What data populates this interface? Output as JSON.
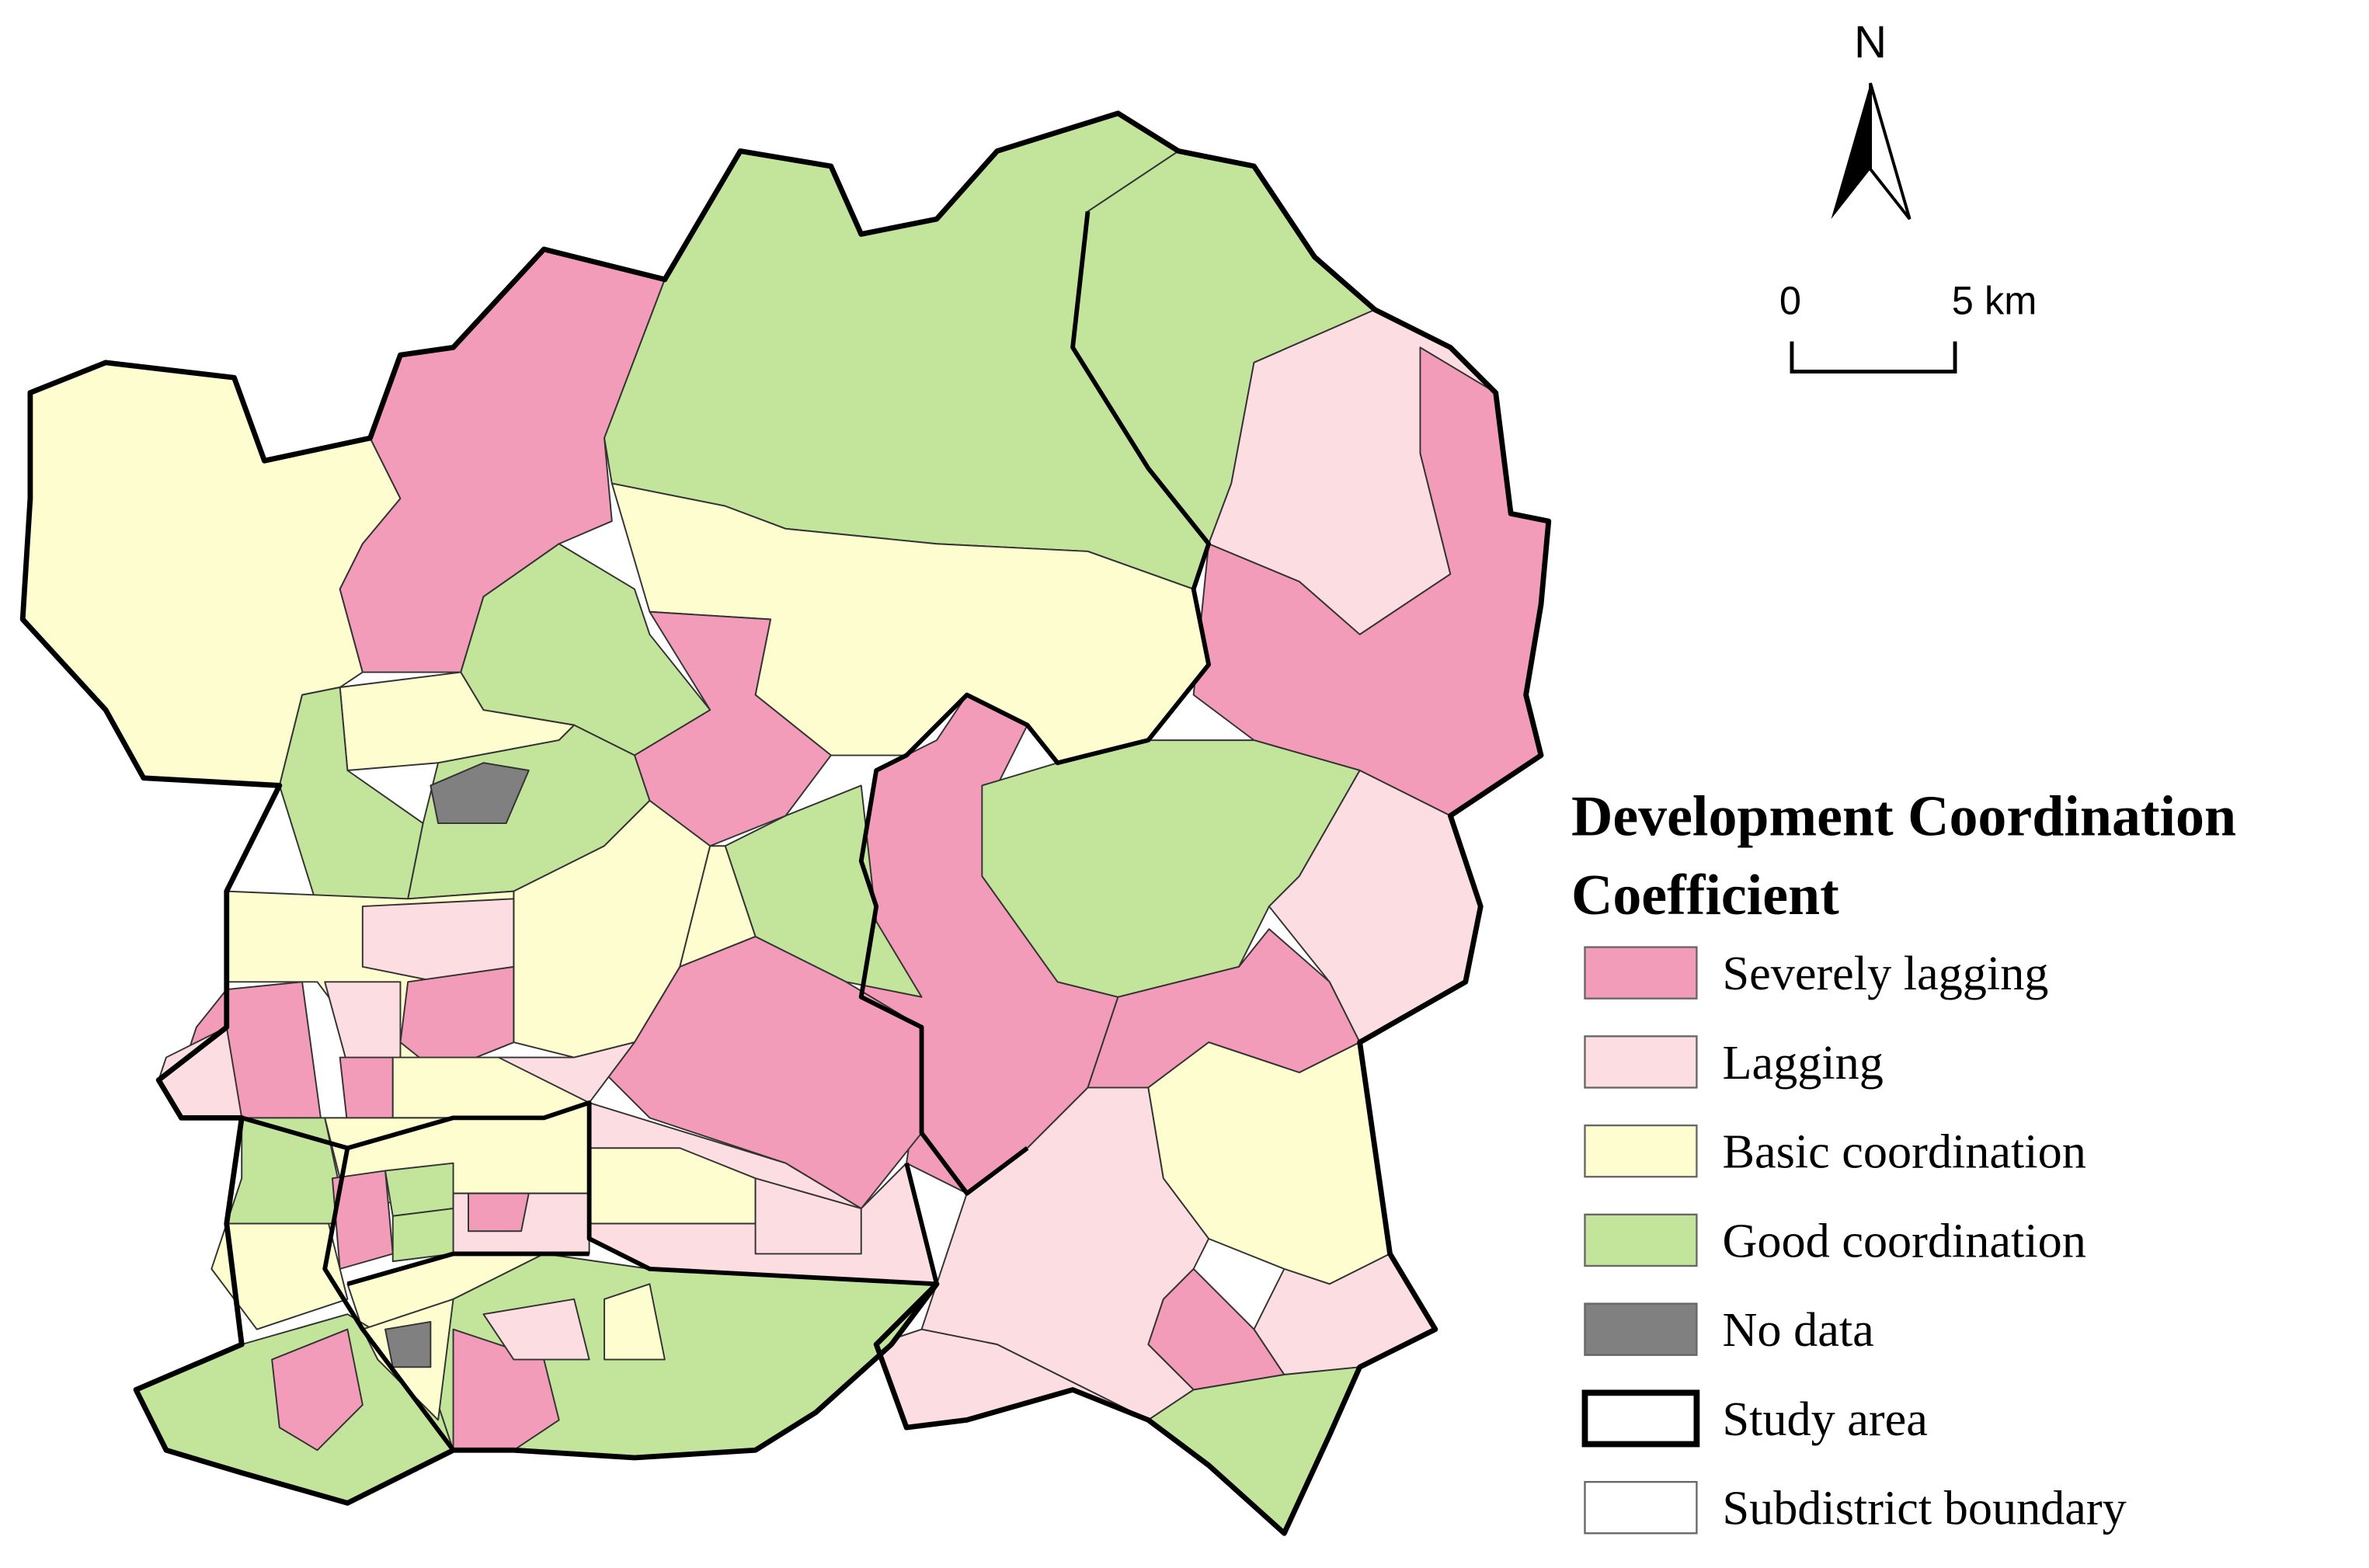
{
  "north_arrow": {
    "label": "N"
  },
  "scale_bar": {
    "start_label": "0",
    "end_label": "5 km"
  },
  "legend": {
    "title": "Development Coordination Coefficient",
    "items": [
      {
        "label": "Severely lagging",
        "color": "#f39cb9"
      },
      {
        "label": "Lagging",
        "color": "#fcdde2"
      },
      {
        "label": "Basic coordination",
        "color": "#fdfdcf"
      },
      {
        "label": "Good coordination",
        "color": "#c3e59b"
      },
      {
        "label": "No data",
        "color": "#808080"
      },
      {
        "label": "Study area",
        "color": "#ffffff"
      },
      {
        "label": "Subdistrict boundary",
        "color": "#ffffff"
      }
    ]
  }
}
